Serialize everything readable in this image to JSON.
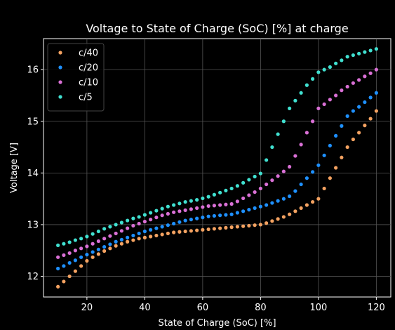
{
  "chart_data": {
    "type": "scatter",
    "title": "Voltage to State of Charge (SoC) [%] at charge",
    "xlabel": "State of Charge (SoC) [%]",
    "ylabel": "Voltage [V]",
    "xlim": [
      5,
      125
    ],
    "ylim": [
      11.6,
      16.6
    ],
    "xticks": [
      20,
      40,
      60,
      80,
      100,
      120
    ],
    "yticks": [
      12,
      13,
      14,
      15,
      16
    ],
    "grid": true,
    "legend_position": "top-left",
    "background": "#000000",
    "foreground": "#ffffff",
    "grid_color": "#555555",
    "x": [
      10,
      12,
      14,
      16,
      18,
      20,
      22,
      24,
      26,
      28,
      30,
      32,
      34,
      36,
      38,
      40,
      42,
      44,
      46,
      48,
      50,
      52,
      54,
      56,
      58,
      60,
      62,
      64,
      66,
      68,
      70,
      72,
      74,
      76,
      78,
      80,
      82,
      84,
      86,
      88,
      90,
      92,
      94,
      96,
      98,
      100,
      102,
      104,
      106,
      108,
      110,
      112,
      114,
      116,
      118,
      120
    ],
    "series": [
      {
        "name": "c/40",
        "color": "#f4a261",
        "values": [
          11.8,
          11.9,
          12.0,
          12.1,
          12.2,
          12.3,
          12.37,
          12.43,
          12.49,
          12.54,
          12.59,
          12.63,
          12.67,
          12.7,
          12.73,
          12.75,
          12.77,
          12.79,
          12.81,
          12.83,
          12.85,
          12.86,
          12.87,
          12.88,
          12.89,
          12.9,
          12.91,
          12.92,
          12.93,
          12.94,
          12.95,
          12.96,
          12.97,
          12.98,
          12.99,
          13.0,
          13.03,
          13.07,
          13.11,
          13.15,
          13.2,
          13.26,
          13.32,
          13.38,
          13.44,
          13.5,
          13.7,
          13.9,
          14.1,
          14.3,
          14.5,
          14.65,
          14.78,
          14.92,
          15.05,
          15.2
        ]
      },
      {
        "name": "c/20",
        "color": "#1e90ff",
        "values": [
          12.15,
          12.2,
          12.26,
          12.31,
          12.37,
          12.42,
          12.47,
          12.52,
          12.57,
          12.62,
          12.67,
          12.71,
          12.75,
          12.79,
          12.83,
          12.87,
          12.9,
          12.93,
          12.96,
          12.99,
          13.02,
          13.05,
          13.08,
          13.1,
          13.12,
          13.14,
          13.16,
          13.17,
          13.18,
          13.19,
          13.2,
          13.23,
          13.26,
          13.29,
          13.32,
          13.35,
          13.38,
          13.42,
          13.46,
          13.5,
          13.55,
          13.65,
          13.78,
          13.9,
          14.02,
          14.15,
          14.34,
          14.53,
          14.72,
          14.91,
          15.1,
          15.2,
          15.28,
          15.37,
          15.46,
          15.55
        ]
      },
      {
        "name": "c/10",
        "color": "#da70d6",
        "values": [
          12.37,
          12.41,
          12.45,
          12.5,
          12.54,
          12.58,
          12.63,
          12.68,
          12.73,
          12.78,
          12.83,
          12.88,
          12.93,
          12.98,
          13.02,
          13.06,
          13.1,
          13.14,
          13.18,
          13.21,
          13.24,
          13.26,
          13.28,
          13.3,
          13.32,
          13.34,
          13.36,
          13.37,
          13.38,
          13.39,
          13.4,
          13.45,
          13.51,
          13.57,
          13.63,
          13.7,
          13.78,
          13.86,
          13.94,
          14.03,
          14.12,
          14.33,
          14.55,
          14.78,
          15.0,
          15.25,
          15.33,
          15.42,
          15.5,
          15.6,
          15.67,
          15.74,
          15.8,
          15.87,
          15.93,
          16.0
        ]
      },
      {
        "name": "c/5",
        "color": "#40e0d0",
        "values": [
          12.6,
          12.63,
          12.66,
          12.7,
          12.73,
          12.77,
          12.82,
          12.87,
          12.92,
          12.96,
          13.0,
          13.04,
          13.08,
          13.12,
          13.15,
          13.19,
          13.23,
          13.27,
          13.31,
          13.35,
          13.38,
          13.41,
          13.44,
          13.46,
          13.48,
          13.51,
          13.54,
          13.58,
          13.62,
          13.66,
          13.7,
          13.75,
          13.81,
          13.87,
          13.93,
          13.99,
          14.25,
          14.5,
          14.75,
          15.0,
          15.25,
          15.4,
          15.55,
          15.7,
          15.82,
          15.95,
          16.0,
          16.05,
          16.12,
          16.18,
          16.25,
          16.28,
          16.31,
          16.34,
          16.37,
          16.4
        ]
      }
    ]
  }
}
